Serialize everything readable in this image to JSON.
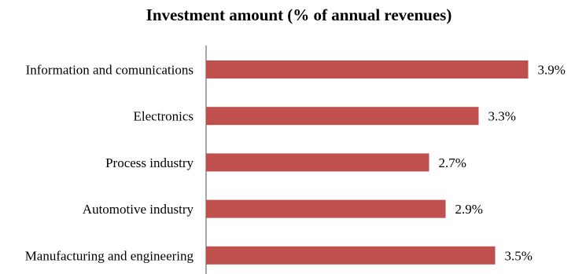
{
  "chart_data": {
    "type": "bar",
    "orientation": "horizontal",
    "title": "Investment amount (% of annual revenues)",
    "xlabel": "",
    "ylabel": "",
    "categories": [
      "Information and comunications",
      "Electronics",
      "Process industry",
      "Automotive industry",
      "Manufacturing and engineering"
    ],
    "values": [
      3.9,
      3.3,
      2.7,
      2.9,
      3.5
    ],
    "value_labels": [
      "3.9%",
      "3.3%",
      "2.7%",
      "2.9%",
      "3.5%"
    ],
    "xlim": [
      0,
      4.4
    ],
    "grid": false,
    "legend": "none",
    "bar_color": "#c0504d",
    "axis_color": "#888888"
  }
}
